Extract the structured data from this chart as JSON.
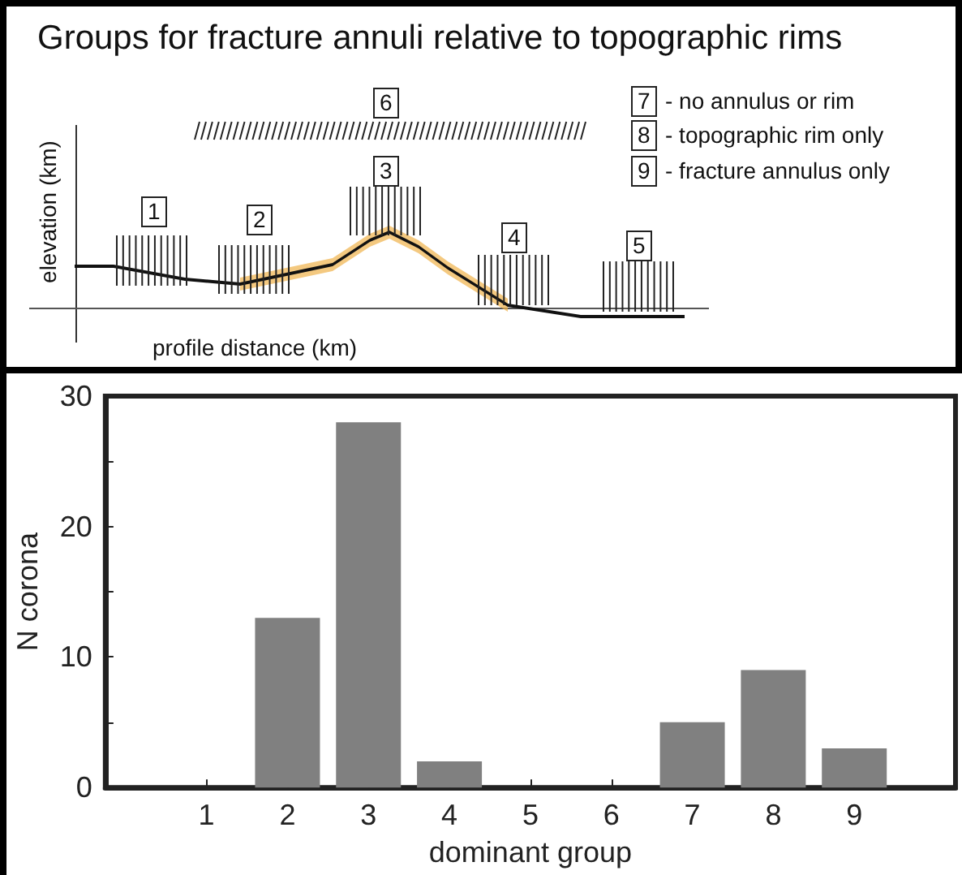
{
  "chart_data": {
    "type": "bar",
    "title": "Groups for fracture annuli relative to topographic rims",
    "xlabel": "dominant group",
    "ylabel": "N corona",
    "x": [
      1,
      2,
      3,
      4,
      5,
      6,
      7,
      8,
      9
    ],
    "values": [
      0,
      13,
      28,
      2,
      0,
      0,
      5,
      9,
      3
    ],
    "color": "#808080",
    "xlim": [
      -0.25,
      10.25
    ],
    "xticks": [
      1,
      2,
      3,
      4,
      5,
      6,
      7,
      8,
      9
    ],
    "ylim": [
      0,
      30
    ],
    "yticks": [
      0,
      {
        "value": 5,
        "label": null
      },
      10,
      {
        "value": 15,
        "label": null
      },
      20,
      {
        "value": 25,
        "label": null
      },
      30
    ],
    "grid": false,
    "annotations": [
      "1",
      "2",
      "3",
      "4",
      "5",
      "6",
      "7",
      "- no annulus or rim",
      "8",
      "- topographic rim only",
      "9",
      "- fracture annulus only",
      "elevation (km)",
      "profile distance (km)"
    ]
  }
}
